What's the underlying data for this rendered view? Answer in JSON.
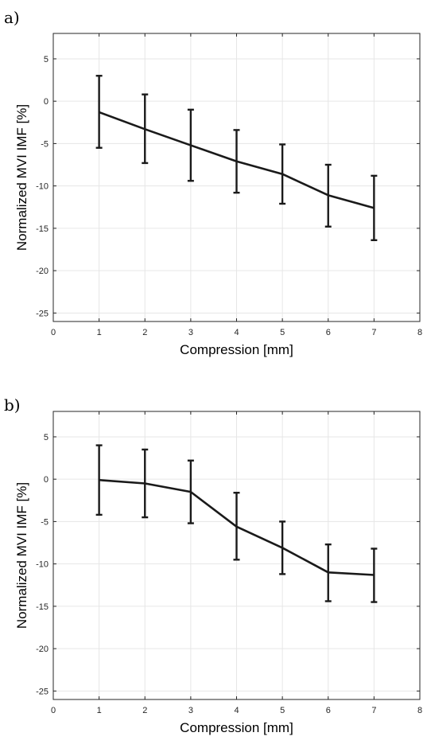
{
  "chart_data": [
    {
      "type": "line",
      "panel_label": "a)",
      "xlabel": "Compression [mm]",
      "ylabel": "Normalized MVI IMF [%]",
      "xlim": [
        0,
        8
      ],
      "ylim": [
        -26,
        8
      ],
      "xticks": [
        0,
        1,
        2,
        3,
        4,
        5,
        6,
        7,
        8
      ],
      "yticks": [
        5,
        0,
        -5,
        -10,
        -15,
        -20,
        -25
      ],
      "grid": true,
      "x": [
        1,
        2,
        3,
        4,
        5,
        6,
        7
      ],
      "series": [
        {
          "values": [
            -1.3,
            -3.3,
            -5.2,
            -7.1,
            -8.6,
            -11.1,
            -12.6
          ],
          "err_low": [
            -5.5,
            -7.3,
            -9.4,
            -10.8,
            -12.1,
            -14.8,
            -16.4
          ],
          "err_high": [
            3.0,
            0.8,
            -1.0,
            -3.4,
            -5.1,
            -7.5,
            -8.8
          ]
        }
      ]
    },
    {
      "type": "line",
      "panel_label": "b)",
      "xlabel": "Compression [mm]",
      "ylabel": "Normalized MVI IMF [%]",
      "xlim": [
        0,
        8
      ],
      "ylim": [
        -26,
        8
      ],
      "xticks": [
        0,
        1,
        2,
        3,
        4,
        5,
        6,
        7,
        8
      ],
      "yticks": [
        5,
        0,
        -5,
        -10,
        -15,
        -20,
        -25
      ],
      "grid": true,
      "x": [
        1,
        2,
        3,
        4,
        5,
        6,
        7
      ],
      "series": [
        {
          "values": [
            -0.1,
            -0.5,
            -1.5,
            -5.6,
            -8.1,
            -11.0,
            -11.3
          ],
          "err_low": [
            -4.2,
            -4.5,
            -5.2,
            -9.5,
            -11.2,
            -14.4,
            -14.5
          ],
          "err_high": [
            4.0,
            3.5,
            2.2,
            -1.6,
            -5.0,
            -7.7,
            -8.2
          ]
        }
      ]
    }
  ]
}
